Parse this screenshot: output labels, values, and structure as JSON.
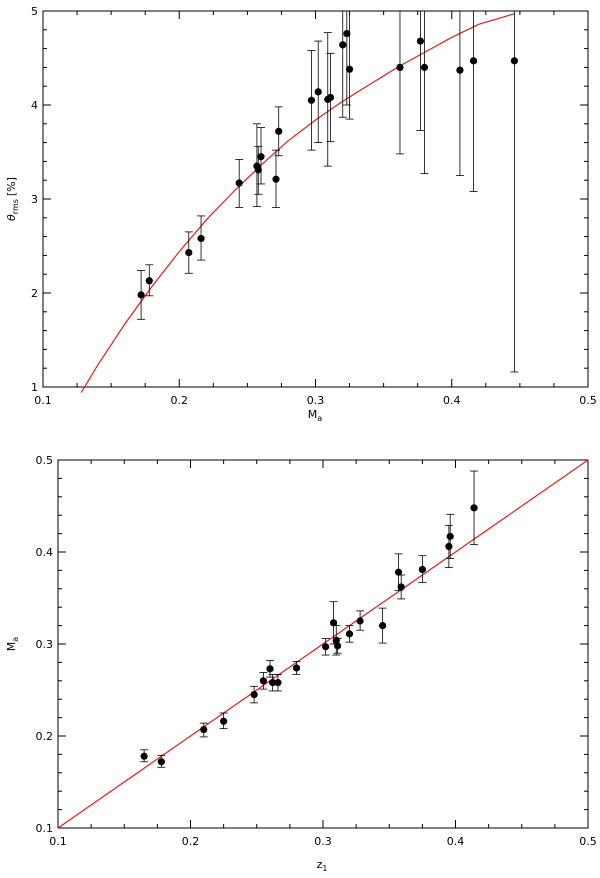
{
  "chart_data": [
    {
      "type": "scatter",
      "title": "",
      "xlabel": "M",
      "xlabel_sub": "a",
      "ylabel": "θ",
      "ylabel_sub": "rms",
      "ylabel_unit": "[%]",
      "xlim": [
        0.1,
        0.5
      ],
      "ylim": [
        1,
        5
      ],
      "xticks": [
        "0.1",
        "0.2",
        "0.3",
        "0.4",
        "0.5"
      ],
      "yticks": [
        "1",
        "2",
        "3",
        "4",
        "5"
      ],
      "grid": false,
      "colors": {
        "points": "#000000",
        "fit": "#e02020"
      },
      "points": [
        {
          "x": 0.172,
          "y": 1.98,
          "lo": 1.72,
          "hi": 2.24
        },
        {
          "x": 0.178,
          "y": 2.13,
          "lo": 1.97,
          "hi": 2.3
        },
        {
          "x": 0.207,
          "y": 2.43,
          "lo": 2.21,
          "hi": 2.65
        },
        {
          "x": 0.216,
          "y": 2.58,
          "lo": 2.35,
          "hi": 2.82
        },
        {
          "x": 0.244,
          "y": 3.17,
          "lo": 2.91,
          "hi": 3.42
        },
        {
          "x": 0.257,
          "y": 3.35,
          "lo": 2.92,
          "hi": 3.8
        },
        {
          "x": 0.258,
          "y": 3.31,
          "lo": 3.05,
          "hi": 3.56
        },
        {
          "x": 0.26,
          "y": 3.45,
          "lo": 3.16,
          "hi": 3.76
        },
        {
          "x": 0.271,
          "y": 3.21,
          "lo": 2.91,
          "hi": 3.52
        },
        {
          "x": 0.273,
          "y": 3.72,
          "lo": 3.46,
          "hi": 3.98
        },
        {
          "x": 0.297,
          "y": 4.05,
          "lo": 3.52,
          "hi": 4.58
        },
        {
          "x": 0.302,
          "y": 4.14,
          "lo": 3.6,
          "hi": 4.68
        },
        {
          "x": 0.309,
          "y": 4.06,
          "lo": 3.35,
          "hi": 4.77
        },
        {
          "x": 0.311,
          "y": 4.08,
          "lo": 3.61,
          "hi": 4.55
        },
        {
          "x": 0.32,
          "y": 4.64,
          "lo": 3.87,
          "hi": 5.0
        },
        {
          "x": 0.323,
          "y": 4.76,
          "lo": 4.0,
          "hi": 5.0
        },
        {
          "x": 0.325,
          "y": 4.38,
          "lo": 3.85,
          "hi": 5.0
        },
        {
          "x": 0.362,
          "y": 4.4,
          "lo": 3.48,
          "hi": 5.0
        },
        {
          "x": 0.377,
          "y": 4.68,
          "lo": 3.73,
          "hi": 5.0
        },
        {
          "x": 0.38,
          "y": 4.4,
          "lo": 3.27,
          "hi": 5.0
        },
        {
          "x": 0.406,
          "y": 4.37,
          "lo": 3.25,
          "hi": 5.0
        },
        {
          "x": 0.416,
          "y": 4.47,
          "lo": 3.08,
          "hi": 5.0
        },
        {
          "x": 0.446,
          "y": 4.47,
          "lo": 1.16,
          "hi": 5.0
        }
      ],
      "fit": {
        "x": [
          0.128,
          0.14,
          0.16,
          0.18,
          0.2,
          0.22,
          0.24,
          0.26,
          0.28,
          0.3,
          0.32,
          0.34,
          0.36,
          0.38,
          0.4,
          0.42,
          0.446
        ],
        "y": [
          0.94,
          1.23,
          1.67,
          2.07,
          2.44,
          2.78,
          3.08,
          3.36,
          3.62,
          3.84,
          4.04,
          4.22,
          4.4,
          4.56,
          4.72,
          4.86,
          4.97
        ]
      }
    },
    {
      "type": "scatter",
      "title": "",
      "xlabel": "z",
      "xlabel_sub": "1",
      "ylabel": "M",
      "ylabel_sub": "a",
      "xlim": [
        0.1,
        0.5
      ],
      "ylim": [
        0.1,
        0.5
      ],
      "xticks": [
        "0.1",
        "0.2",
        "0.3",
        "0.4",
        "0.5"
      ],
      "yticks": [
        "0.1",
        "0.2",
        "0.3",
        "0.4",
        "0.5"
      ],
      "grid": false,
      "colors": {
        "points": "#000000",
        "fit": "#e02020"
      },
      "points": [
        {
          "x": 0.165,
          "y": 0.178,
          "lo": 0.172,
          "hi": 0.185
        },
        {
          "x": 0.178,
          "y": 0.172,
          "lo": 0.166,
          "hi": 0.179
        },
        {
          "x": 0.21,
          "y": 0.207,
          "lo": 0.199,
          "hi": 0.214
        },
        {
          "x": 0.225,
          "y": 0.216,
          "lo": 0.208,
          "hi": 0.225
        },
        {
          "x": 0.248,
          "y": 0.245,
          "lo": 0.236,
          "hi": 0.254
        },
        {
          "x": 0.255,
          "y": 0.26,
          "lo": 0.251,
          "hi": 0.269
        },
        {
          "x": 0.26,
          "y": 0.273,
          "lo": 0.264,
          "hi": 0.282
        },
        {
          "x": 0.262,
          "y": 0.258,
          "lo": 0.249,
          "hi": 0.267
        },
        {
          "x": 0.266,
          "y": 0.258,
          "lo": 0.249,
          "hi": 0.267
        },
        {
          "x": 0.28,
          "y": 0.274,
          "lo": 0.267,
          "hi": 0.281
        },
        {
          "x": 0.302,
          "y": 0.297,
          "lo": 0.288,
          "hi": 0.306
        },
        {
          "x": 0.308,
          "y": 0.323,
          "lo": 0.3,
          "hi": 0.346
        },
        {
          "x": 0.31,
          "y": 0.304,
          "lo": 0.288,
          "hi": 0.32
        },
        {
          "x": 0.311,
          "y": 0.298,
          "lo": 0.29,
          "hi": 0.306
        },
        {
          "x": 0.32,
          "y": 0.311,
          "lo": 0.302,
          "hi": 0.32
        },
        {
          "x": 0.328,
          "y": 0.325,
          "lo": 0.315,
          "hi": 0.336
        },
        {
          "x": 0.345,
          "y": 0.32,
          "lo": 0.301,
          "hi": 0.339
        },
        {
          "x": 0.357,
          "y": 0.378,
          "lo": 0.358,
          "hi": 0.398
        },
        {
          "x": 0.359,
          "y": 0.362,
          "lo": 0.349,
          "hi": 0.375
        },
        {
          "x": 0.375,
          "y": 0.381,
          "lo": 0.367,
          "hi": 0.396
        },
        {
          "x": 0.395,
          "y": 0.406,
          "lo": 0.383,
          "hi": 0.429
        },
        {
          "x": 0.396,
          "y": 0.417,
          "lo": 0.393,
          "hi": 0.441
        },
        {
          "x": 0.414,
          "y": 0.448,
          "lo": 0.408,
          "hi": 0.488
        }
      ],
      "fit": {
        "x": [
          0.1,
          0.5
        ],
        "y": [
          0.1,
          0.5
        ]
      }
    }
  ]
}
